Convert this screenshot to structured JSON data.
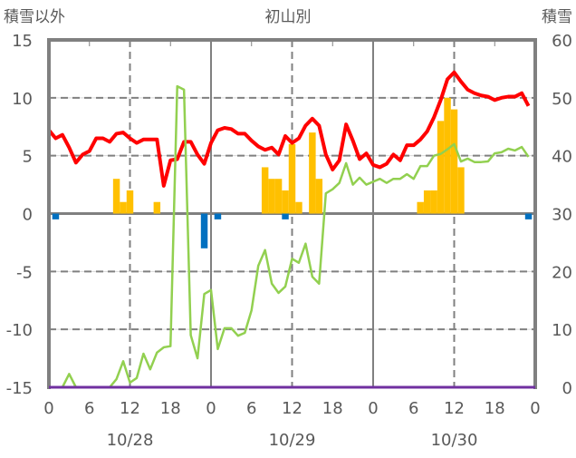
{
  "chart_data": {
    "type": "bar+line",
    "title": "初山別",
    "left_axis_label": "積雪以外",
    "right_axis_label": "積雪",
    "left_ylim": [
      -15,
      15
    ],
    "right_ylim": [
      0,
      60
    ],
    "left_ticks": [
      "15",
      "10",
      "5",
      "0",
      "-5",
      "-10",
      "-15"
    ],
    "right_ticks": [
      "60",
      "50",
      "40",
      "30",
      "20",
      "10",
      "0"
    ],
    "x_tick_labels": [
      "0",
      "6",
      "12",
      "18",
      "0",
      "6",
      "12",
      "18",
      "0",
      "6",
      "12",
      "18",
      "0"
    ],
    "date_labels": [
      "10/28",
      "10/29",
      "10/30"
    ],
    "hours": 72,
    "colors": {
      "temperature": "#ff0000",
      "snow_depth": "#92d050",
      "snowfall": "#ffc000",
      "precip": "#0070c0",
      "baseline": "#7030a0",
      "frame": "#808080"
    },
    "series": [
      {
        "name": "temperature",
        "axis": "left",
        "type": "line",
        "values": [
          7.2,
          6.5,
          6.8,
          5.7,
          4.4,
          5.1,
          5.4,
          6.5,
          6.5,
          6.2,
          6.9,
          7.0,
          6.5,
          6.1,
          6.4,
          6.4,
          6.4,
          2.4,
          4.6,
          4.7,
          6.2,
          6.2,
          5.1,
          4.3,
          6.1,
          7.2,
          7.4,
          7.3,
          6.9,
          6.9,
          6.3,
          5.8,
          5.5,
          5.7,
          5.1,
          6.7,
          6.1,
          6.5,
          7.6,
          8.2,
          7.6,
          5.1,
          3.8,
          4.6,
          7.7,
          6.3,
          4.7,
          5.2,
          4.2,
          4.0,
          4.3,
          5.1,
          4.6,
          5.9,
          5.9,
          6.4,
          7.1,
          8.3,
          9.8,
          11.6,
          12.2,
          11.4,
          10.7,
          10.4,
          10.2,
          10.1,
          9.8,
          10.0,
          10.1,
          10.1,
          10.4,
          9.3
        ]
      },
      {
        "name": "snow_depth",
        "axis": "right",
        "type": "line",
        "values": [
          0,
          0,
          0,
          2.3,
          0,
          0,
          0,
          0,
          0,
          0,
          1.4,
          4.5,
          0.8,
          1.6,
          5.8,
          3.1,
          6.0,
          6.9,
          7.1,
          52,
          51.4,
          9,
          5,
          16.1,
          16.8,
          6.6,
          10.2,
          10.2,
          8.9,
          9.4,
          13.3,
          21,
          23.7,
          17.9,
          16.3,
          17.4,
          22.2,
          21.5,
          24.8,
          19.1,
          17.9,
          33.5,
          34.2,
          35.3,
          38.7,
          35,
          36.2,
          35,
          35.5,
          36,
          35.3,
          36,
          36,
          36.8,
          36,
          38.2,
          38.2,
          40,
          40.3,
          41.1,
          42,
          39,
          39.5,
          38.9,
          38.9,
          39,
          40.4,
          40.6,
          41.2,
          40.9,
          41.5,
          39.8
        ]
      },
      {
        "name": "snowfall",
        "axis": "left",
        "type": "bar",
        "points": [
          [
            10,
            3
          ],
          [
            11,
            1
          ],
          [
            12,
            2
          ],
          [
            16,
            1
          ],
          [
            32,
            4
          ],
          [
            33,
            3
          ],
          [
            34,
            3
          ],
          [
            35,
            2
          ],
          [
            36,
            6
          ],
          [
            37,
            1
          ],
          [
            39,
            7
          ],
          [
            40,
            3
          ],
          [
            55,
            1
          ],
          [
            56,
            2
          ],
          [
            57,
            2
          ],
          [
            58,
            8
          ],
          [
            59,
            10
          ],
          [
            60,
            9
          ],
          [
            61,
            4
          ]
        ]
      },
      {
        "name": "precip",
        "axis": "left",
        "type": "bar",
        "points": [
          [
            1,
            -0.5
          ],
          [
            23,
            -3
          ],
          [
            25,
            -0.5
          ],
          [
            35,
            -0.5
          ],
          [
            71,
            -0.5
          ]
        ]
      },
      {
        "name": "baseline",
        "axis": "right",
        "type": "line",
        "values": [
          0,
          0
        ]
      }
    ]
  }
}
